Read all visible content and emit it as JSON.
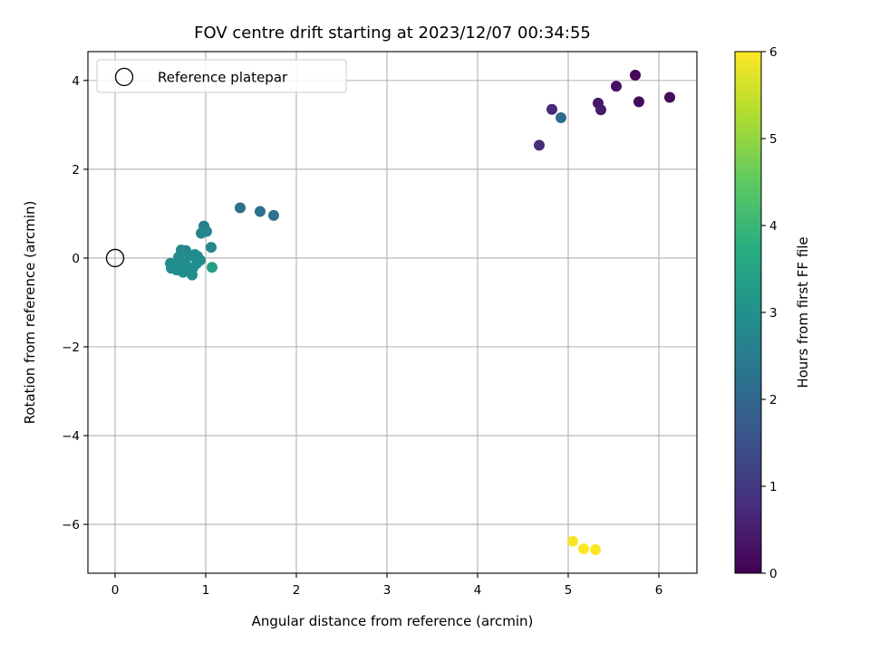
{
  "chart_data": {
    "type": "scatter",
    "title": "FOV centre drift starting at 2023/12/07 00:34:55",
    "xlabel": "Angular distance from reference (arcmin)",
    "ylabel": "Rotation from reference (arcmin)",
    "xlim": [
      -0.3,
      6.42
    ],
    "ylim": [
      -7.1,
      4.65
    ],
    "xticks": [
      0,
      1,
      2,
      3,
      4,
      5,
      6
    ],
    "yticks": [
      -6,
      -4,
      -2,
      0,
      2,
      4
    ],
    "xtick_labels": [
      "0",
      "1",
      "2",
      "3",
      "4",
      "5",
      "6"
    ],
    "ytick_labels": [
      "−6",
      "−4",
      "−2",
      "0",
      "2",
      "4"
    ],
    "grid": true,
    "legend": {
      "position": "top-left",
      "entries": [
        "Reference platepar"
      ]
    },
    "reference_point": {
      "name": "Reference platepar",
      "x": 0,
      "y": 0,
      "marker": "hollow-circle"
    },
    "colorbar": {
      "label": "Hours from first FF file",
      "range": [
        0,
        6
      ],
      "ticks": [
        0,
        1,
        2,
        3,
        4,
        5,
        6
      ],
      "tick_labels": [
        "0",
        "1",
        "2",
        "3",
        "4",
        "5",
        "6"
      ],
      "colormap": "viridis"
    },
    "points": [
      {
        "x": 5.74,
        "y": 4.12,
        "c": 0.1
      },
      {
        "x": 6.12,
        "y": 3.62,
        "c": 0.15
      },
      {
        "x": 5.78,
        "y": 3.52,
        "c": 0.2
      },
      {
        "x": 5.53,
        "y": 3.87,
        "c": 0.3
      },
      {
        "x": 5.33,
        "y": 3.49,
        "c": 0.4
      },
      {
        "x": 5.36,
        "y": 3.34,
        "c": 0.45
      },
      {
        "x": 4.82,
        "y": 3.35,
        "c": 0.7
      },
      {
        "x": 4.68,
        "y": 2.54,
        "c": 0.8
      },
      {
        "x": 4.92,
        "y": 3.16,
        "c": 2.1
      },
      {
        "x": 1.38,
        "y": 1.13,
        "c": 2.2
      },
      {
        "x": 1.6,
        "y": 1.05,
        "c": 2.25
      },
      {
        "x": 1.75,
        "y": 0.96,
        "c": 2.3
      },
      {
        "x": 0.98,
        "y": 0.72,
        "c": 2.6
      },
      {
        "x": 0.95,
        "y": 0.56,
        "c": 2.65
      },
      {
        "x": 1.01,
        "y": 0.6,
        "c": 2.7
      },
      {
        "x": 1.06,
        "y": 0.24,
        "c": 2.75
      },
      {
        "x": 0.73,
        "y": 0.18,
        "c": 2.8
      },
      {
        "x": 0.78,
        "y": 0.17,
        "c": 2.8
      },
      {
        "x": 0.82,
        "y": 0.05,
        "c": 2.85
      },
      {
        "x": 0.7,
        "y": 0.02,
        "c": 2.85
      },
      {
        "x": 0.88,
        "y": 0.08,
        "c": 2.85
      },
      {
        "x": 0.91,
        "y": 0.04,
        "c": 2.9
      },
      {
        "x": 0.94,
        "y": -0.05,
        "c": 2.9
      },
      {
        "x": 0.61,
        "y": -0.12,
        "c": 2.9
      },
      {
        "x": 0.65,
        "y": -0.18,
        "c": 2.9
      },
      {
        "x": 0.62,
        "y": -0.23,
        "c": 2.95
      },
      {
        "x": 0.68,
        "y": -0.27,
        "c": 2.95
      },
      {
        "x": 0.75,
        "y": -0.32,
        "c": 2.95
      },
      {
        "x": 0.8,
        "y": -0.26,
        "c": 2.95
      },
      {
        "x": 0.86,
        "y": -0.22,
        "c": 2.95
      },
      {
        "x": 0.85,
        "y": -0.38,
        "c": 2.95
      },
      {
        "x": 0.72,
        "y": -0.08,
        "c": 2.9
      },
      {
        "x": 0.78,
        "y": -0.15,
        "c": 2.95
      },
      {
        "x": 0.9,
        "y": -0.12,
        "c": 2.95
      },
      {
        "x": 1.07,
        "y": -0.21,
        "c": 3.4
      },
      {
        "x": 5.05,
        "y": -6.38,
        "c": 5.95
      },
      {
        "x": 5.17,
        "y": -6.55,
        "c": 6.0
      },
      {
        "x": 5.3,
        "y": -6.57,
        "c": 6.0
      }
    ]
  }
}
